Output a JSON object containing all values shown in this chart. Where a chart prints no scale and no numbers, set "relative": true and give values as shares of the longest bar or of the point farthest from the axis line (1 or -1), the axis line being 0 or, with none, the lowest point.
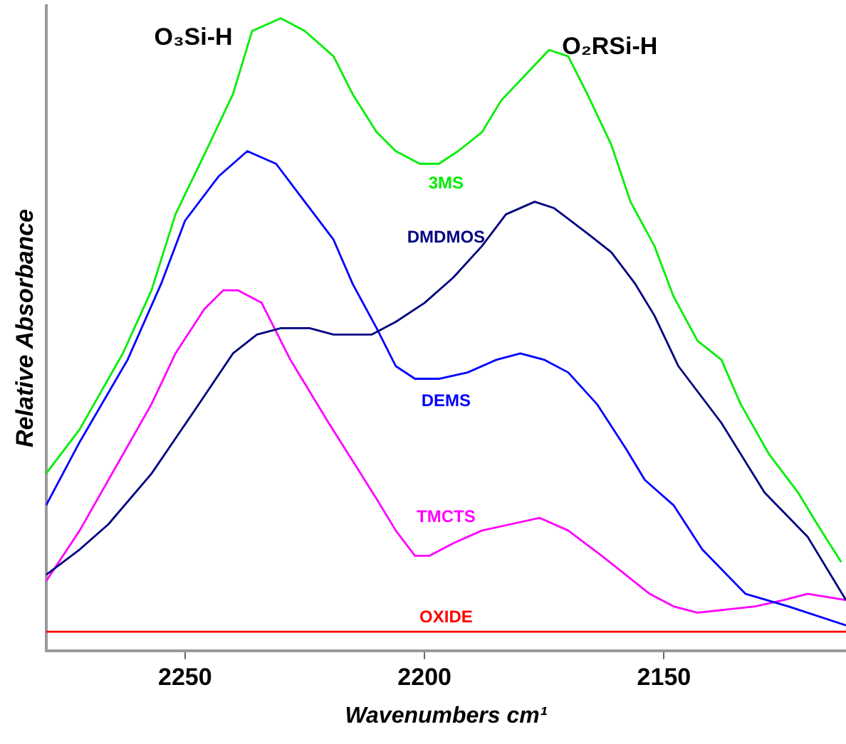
{
  "chart_data": {
    "type": "line",
    "xlabel": "Wavenumbers cm¹",
    "ylabel": "Relative Absorbance",
    "relative": true,
    "xlim": [
      2279,
      2112
    ],
    "xticks": [
      2250,
      2200,
      2150
    ],
    "grid": false,
    "legend": false,
    "marker": "none",
    "line_style": "solid",
    "annotations": [
      "O₃Si-H",
      "O₂RSi-H"
    ],
    "series": [
      {
        "name": "3MS",
        "color": "#00ee00",
        "x": [
          2279,
          2272,
          2263,
          2257,
          2252,
          2245,
          2240,
          2236,
          2230,
          2225,
          2219,
          2215,
          2210,
          2206,
          2201,
          2197,
          2193,
          2188,
          2184,
          2179,
          2174,
          2170,
          2166,
          2161,
          2157,
          2152,
          2148,
          2143,
          2138,
          2134,
          2128,
          2122,
          2118,
          2113
        ],
        "values": [
          0.28,
          0.35,
          0.47,
          0.57,
          0.69,
          0.8,
          0.88,
          0.98,
          1.0,
          0.98,
          0.94,
          0.88,
          0.82,
          0.79,
          0.77,
          0.77,
          0.79,
          0.82,
          0.87,
          0.91,
          0.95,
          0.94,
          0.88,
          0.8,
          0.71,
          0.64,
          0.56,
          0.49,
          0.46,
          0.39,
          0.31,
          0.25,
          0.2,
          0.14
        ]
      },
      {
        "name": "DMDMOS",
        "color": "#000080",
        "x": [
          2279,
          2272,
          2266,
          2257,
          2248,
          2240,
          2235,
          2230,
          2224,
          2219,
          2216,
          2211,
          2206,
          2200,
          2194,
          2188,
          2183,
          2177,
          2173,
          2166,
          2161,
          2156,
          2152,
          2147,
          2138,
          2129,
          2120,
          2112
        ],
        "values": [
          0.12,
          0.16,
          0.2,
          0.28,
          0.38,
          0.47,
          0.5,
          0.51,
          0.51,
          0.5,
          0.5,
          0.5,
          0.52,
          0.55,
          0.59,
          0.64,
          0.69,
          0.71,
          0.7,
          0.66,
          0.63,
          0.58,
          0.53,
          0.45,
          0.36,
          0.25,
          0.18,
          0.08
        ]
      },
      {
        "name": "DEMS",
        "color": "#0000ff",
        "x": [
          2279,
          2272,
          2262,
          2255,
          2250,
          2243,
          2237,
          2231,
          2225,
          2219,
          2215,
          2210,
          2206,
          2202,
          2197,
          2191,
          2185,
          2180,
          2175,
          2170,
          2164,
          2158,
          2154,
          2148,
          2142,
          2133,
          2124,
          2112
        ],
        "values": [
          0.23,
          0.33,
          0.46,
          0.58,
          0.68,
          0.75,
          0.79,
          0.77,
          0.71,
          0.65,
          0.58,
          0.51,
          0.45,
          0.43,
          0.43,
          0.44,
          0.46,
          0.47,
          0.46,
          0.44,
          0.39,
          0.32,
          0.27,
          0.23,
          0.16,
          0.09,
          0.07,
          0.04
        ]
      },
      {
        "name": "TMCTS",
        "color": "#ff00ff",
        "x": [
          2279,
          2272,
          2263,
          2257,
          2252,
          2246,
          2242,
          2239,
          2234,
          2228,
          2224,
          2220,
          2215,
          2210,
          2206,
          2202,
          2199,
          2194,
          2188,
          2182,
          2176,
          2170,
          2163,
          2158,
          2153,
          2148,
          2143,
          2131,
          2125,
          2120,
          2112
        ],
        "values": [
          0.11,
          0.19,
          0.31,
          0.39,
          0.47,
          0.54,
          0.57,
          0.57,
          0.55,
          0.46,
          0.41,
          0.36,
          0.3,
          0.24,
          0.19,
          0.15,
          0.15,
          0.17,
          0.19,
          0.2,
          0.21,
          0.19,
          0.15,
          0.12,
          0.09,
          0.07,
          0.06,
          0.07,
          0.08,
          0.09,
          0.08
        ]
      },
      {
        "name": "OXIDE",
        "color": "#ff0000",
        "x": [
          2279,
          2112
        ],
        "values": [
          0.03,
          0.03
        ]
      }
    ]
  }
}
